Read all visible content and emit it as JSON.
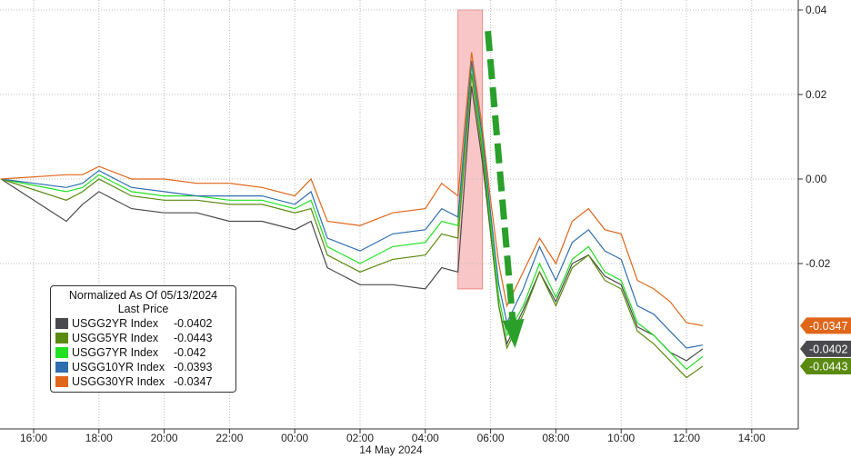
{
  "chart_data": {
    "type": "line",
    "title": "",
    "xlabel": "14 May 2024",
    "ylabel": "",
    "x_ticks": [
      "16:00",
      "18:00",
      "20:00",
      "22:00",
      "00:00",
      "02:00",
      "04:00",
      "06:00",
      "08:00",
      "10:00",
      "12:00",
      "14:00"
    ],
    "y_ticks": [
      "0.04",
      "0.02",
      "0.00",
      "-0.02"
    ],
    "ylim": [
      -0.058,
      0.042
    ],
    "grid": true,
    "legend_placement": "bottom-left",
    "legend_title": "Normalized As Of 05/13/2024",
    "legend_subtitle": "Last Price",
    "x": [
      "05-13 15:00",
      "05-13 17:00",
      "05-13 17:30",
      "05-13 18:00",
      "05-13 19:00",
      "05-13 20:00",
      "05-13 21:00",
      "05-13 22:00",
      "05-13 23:00",
      "05-14 00:00",
      "05-14 00:30",
      "05-14 01:00",
      "05-14 02:00",
      "05-14 03:00",
      "05-14 04:00",
      "05-14 04:30",
      "05-14 05:00",
      "05-14 05:25",
      "05-14 05:45",
      "05-14 06:00",
      "05-14 06:15",
      "05-14 06:30",
      "05-14 07:00",
      "05-14 07:30",
      "05-14 08:00",
      "05-14 08:30",
      "05-14 09:00",
      "05-14 09:30",
      "05-14 10:00",
      "05-14 10:30",
      "05-14 11:00",
      "05-14 11:30",
      "05-14 12:00",
      "05-14 12:30"
    ],
    "series": [
      {
        "name": "USGG2YR Index",
        "last": "-0.0402",
        "color": "#4a4a4e",
        "values": [
          0,
          -0.01,
          -0.006,
          -0.003,
          -0.007,
          -0.008,
          -0.008,
          -0.01,
          -0.01,
          -0.012,
          -0.01,
          -0.021,
          -0.025,
          -0.025,
          -0.026,
          -0.021,
          -0.022,
          0.022,
          0.004,
          -0.013,
          -0.03,
          -0.039,
          -0.031,
          -0.022,
          -0.029,
          -0.02,
          -0.018,
          -0.023,
          -0.025,
          -0.035,
          -0.037,
          -0.041,
          -0.043,
          -0.0402
        ]
      },
      {
        "name": "USGG5YR Index",
        "last": "-0.0443",
        "color": "#5a8a10",
        "values": [
          0,
          -0.005,
          -0.003,
          0,
          -0.004,
          -0.005,
          -0.005,
          -0.006,
          -0.006,
          -0.008,
          -0.007,
          -0.018,
          -0.022,
          -0.019,
          -0.018,
          -0.013,
          -0.014,
          0.025,
          0.006,
          -0.012,
          -0.03,
          -0.04,
          -0.032,
          -0.022,
          -0.03,
          -0.021,
          -0.018,
          -0.024,
          -0.026,
          -0.036,
          -0.039,
          -0.043,
          -0.047,
          -0.0443
        ]
      },
      {
        "name": "USGG7YR Index",
        "last": "-0.042",
        "color": "#22e022",
        "values": [
          0,
          -0.003,
          -0.002,
          0.001,
          -0.003,
          -0.004,
          -0.004,
          -0.005,
          -0.005,
          -0.007,
          -0.005,
          -0.016,
          -0.02,
          -0.016,
          -0.015,
          -0.01,
          -0.011,
          0.027,
          0.008,
          -0.01,
          -0.028,
          -0.037,
          -0.03,
          -0.02,
          -0.028,
          -0.019,
          -0.016,
          -0.022,
          -0.024,
          -0.034,
          -0.037,
          -0.041,
          -0.045,
          -0.042
        ]
      },
      {
        "name": "USGG10YR Index",
        "last": "-0.0393",
        "color": "#2f6fb0",
        "values": [
          0,
          -0.002,
          -0.001,
          0.002,
          -0.002,
          -0.003,
          -0.004,
          -0.004,
          -0.004,
          -0.006,
          -0.003,
          -0.014,
          -0.017,
          -0.013,
          -0.012,
          -0.007,
          -0.009,
          0.028,
          0.01,
          -0.008,
          -0.025,
          -0.034,
          -0.026,
          -0.016,
          -0.024,
          -0.015,
          -0.012,
          -0.017,
          -0.019,
          -0.03,
          -0.032,
          -0.036,
          -0.04,
          -0.0393
        ]
      },
      {
        "name": "USGG30YR Index",
        "last": "-0.0347",
        "color": "#e0661a",
        "values": [
          0,
          0.001,
          0.001,
          0.003,
          0,
          0,
          -0.001,
          -0.001,
          -0.002,
          -0.004,
          0,
          -0.01,
          -0.011,
          -0.008,
          -0.007,
          -0.001,
          -0.004,
          0.03,
          0.012,
          -0.005,
          -0.02,
          -0.03,
          -0.022,
          -0.014,
          -0.02,
          -0.01,
          -0.007,
          -0.012,
          -0.013,
          -0.024,
          -0.026,
          -0.029,
          -0.034,
          -0.0347
        ]
      }
    ],
    "right_tags": [
      {
        "label": "-0.0347",
        "color": "#e0661a",
        "value": -0.0347
      },
      {
        "label": "-0.0402",
        "color": "#4a4a4e",
        "value": -0.0402
      },
      {
        "label": "-0.0443",
        "color": "#5a8a10",
        "value": -0.0443
      }
    ],
    "annotations": {
      "highlight": {
        "from": "05-14 05:00",
        "to": "05-14 05:45",
        "ymin": -0.026,
        "ymax": 0.04,
        "color": "#f4a0a0"
      },
      "arrow": {
        "from": [
          "05-14 05:55",
          0.035
        ],
        "to": [
          "05-14 06:45",
          -0.04
        ],
        "color": "#2aa02a"
      }
    }
  }
}
